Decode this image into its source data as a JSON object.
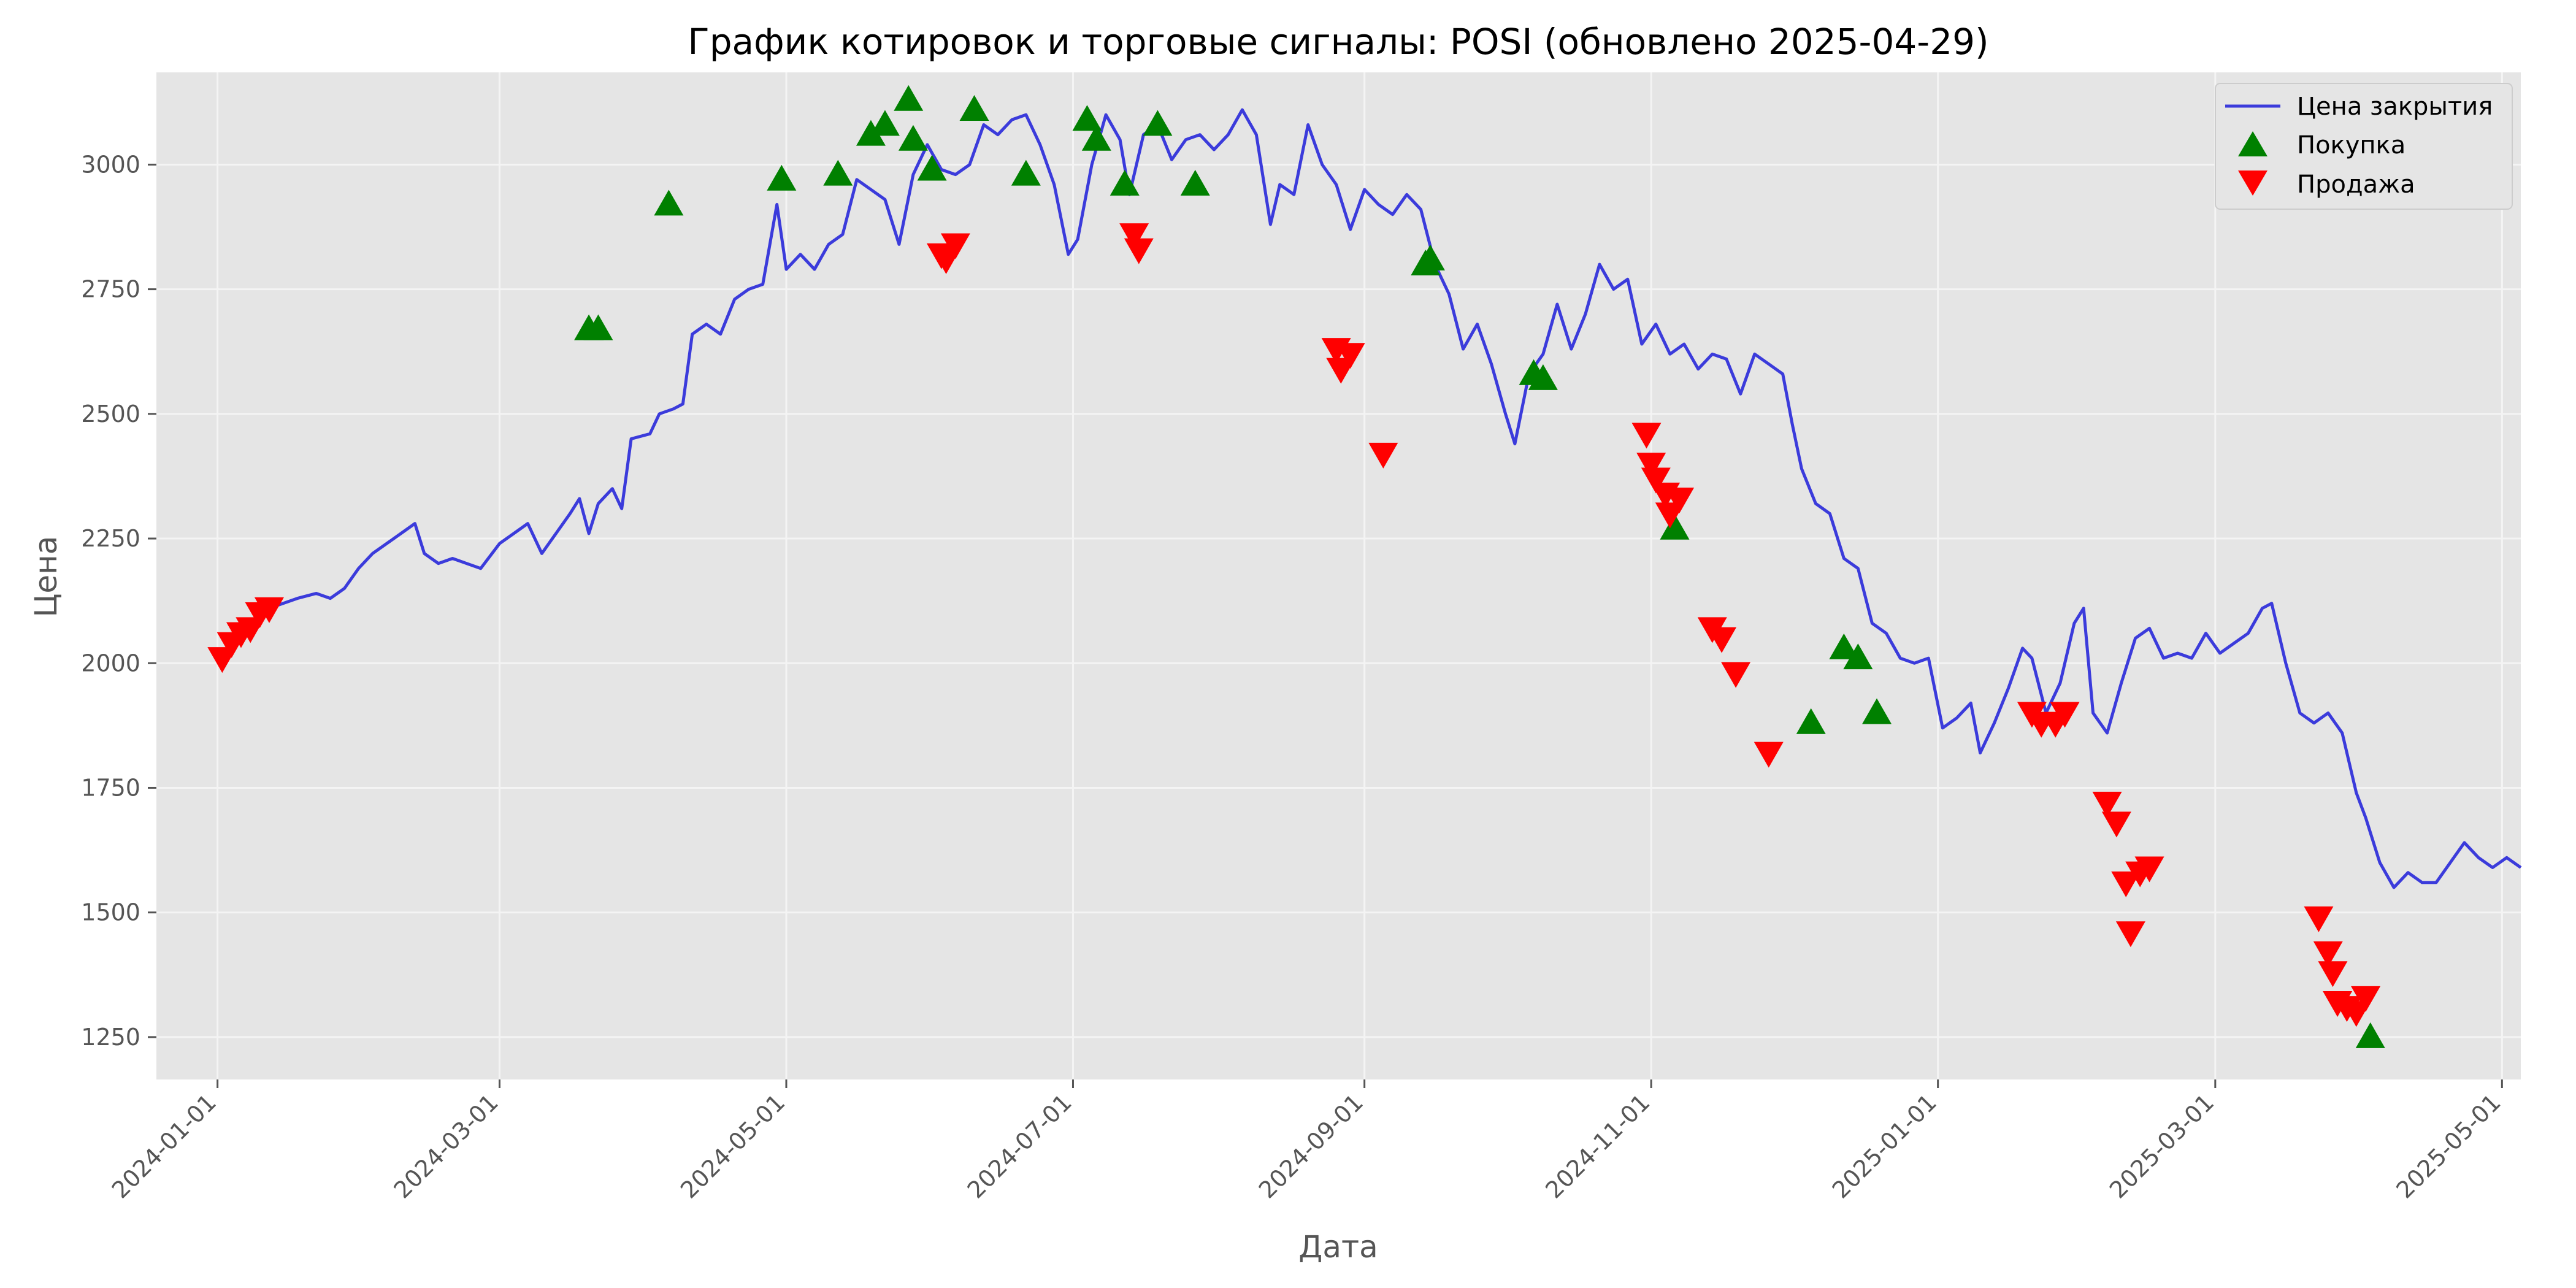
{
  "chart_data": {
    "type": "line",
    "title": "График котировок и торговые сигналы: POSI (обновлено 2025-04-29)",
    "xlabel": "Дата",
    "ylabel": "Цена",
    "x_range": [
      "2023-12-19",
      "2025-05-05"
    ],
    "ylim": [
      1165,
      3185
    ],
    "grid": true,
    "legend_position": "top-right",
    "x_ticks": [
      "2024-01-01",
      "2024-03-01",
      "2024-05-01",
      "2024-07-01",
      "2024-09-01",
      "2024-11-01",
      "2025-01-01",
      "2025-03-01",
      "2025-05-01"
    ],
    "y_ticks": [
      1250,
      1500,
      1750,
      2000,
      2250,
      2500,
      2750,
      3000
    ],
    "colors": {
      "close": "#3b3bdb",
      "buy": "#008000",
      "sell": "#ff0000",
      "plot_bg": "#e5e5e5",
      "grid": "#f4f4f4"
    },
    "series": [
      {
        "name": "Цена закрытия",
        "kind": "line",
        "points": [
          [
            "2024-01-03",
            2020
          ],
          [
            "2024-01-05",
            2050
          ],
          [
            "2024-01-08",
            2070
          ],
          [
            "2024-01-10",
            2090
          ],
          [
            "2024-01-12",
            2110
          ],
          [
            "2024-01-15",
            2120
          ],
          [
            "2024-01-18",
            2130
          ],
          [
            "2024-01-22",
            2140
          ],
          [
            "2024-01-25",
            2130
          ],
          [
            "2024-01-28",
            2150
          ],
          [
            "2024-01-31",
            2190
          ],
          [
            "2024-02-03",
            2220
          ],
          [
            "2024-02-06",
            2240
          ],
          [
            "2024-02-09",
            2260
          ],
          [
            "2024-02-12",
            2280
          ],
          [
            "2024-02-14",
            2220
          ],
          [
            "2024-02-17",
            2200
          ],
          [
            "2024-02-20",
            2210
          ],
          [
            "2024-02-23",
            2200
          ],
          [
            "2024-02-26",
            2190
          ],
          [
            "2024-03-01",
            2240
          ],
          [
            "2024-03-04",
            2260
          ],
          [
            "2024-03-07",
            2280
          ],
          [
            "2024-03-10",
            2220
          ],
          [
            "2024-03-13",
            2260
          ],
          [
            "2024-03-16",
            2300
          ],
          [
            "2024-03-18",
            2330
          ],
          [
            "2024-03-20",
            2260
          ],
          [
            "2024-03-22",
            2320
          ],
          [
            "2024-03-25",
            2350
          ],
          [
            "2024-03-27",
            2310
          ],
          [
            "2024-03-29",
            2450
          ],
          [
            "2024-04-02",
            2460
          ],
          [
            "2024-04-04",
            2500
          ],
          [
            "2024-04-07",
            2510
          ],
          [
            "2024-04-09",
            2520
          ],
          [
            "2024-04-11",
            2660
          ],
          [
            "2024-04-14",
            2680
          ],
          [
            "2024-04-17",
            2660
          ],
          [
            "2024-04-20",
            2730
          ],
          [
            "2024-04-23",
            2750
          ],
          [
            "2024-04-26",
            2760
          ],
          [
            "2024-04-29",
            2920
          ],
          [
            "2024-05-01",
            2790
          ],
          [
            "2024-05-04",
            2820
          ],
          [
            "2024-05-07",
            2790
          ],
          [
            "2024-05-10",
            2840
          ],
          [
            "2024-05-13",
            2860
          ],
          [
            "2024-05-16",
            2970
          ],
          [
            "2024-05-19",
            2950
          ],
          [
            "2024-05-22",
            2930
          ],
          [
            "2024-05-25",
            2840
          ],
          [
            "2024-05-28",
            2980
          ],
          [
            "2024-05-31",
            3040
          ],
          [
            "2024-06-03",
            2990
          ],
          [
            "2024-06-06",
            2980
          ],
          [
            "2024-06-09",
            3000
          ],
          [
            "2024-06-12",
            3080
          ],
          [
            "2024-06-15",
            3060
          ],
          [
            "2024-06-18",
            3090
          ],
          [
            "2024-06-21",
            3100
          ],
          [
            "2024-06-24",
            3040
          ],
          [
            "2024-06-27",
            2960
          ],
          [
            "2024-06-30",
            2820
          ],
          [
            "2024-07-02",
            2850
          ],
          [
            "2024-07-05",
            3000
          ],
          [
            "2024-07-08",
            3100
          ],
          [
            "2024-07-11",
            3050
          ],
          [
            "2024-07-13",
            2940
          ],
          [
            "2024-07-16",
            3060
          ],
          [
            "2024-07-19",
            3080
          ],
          [
            "2024-07-22",
            3010
          ],
          [
            "2024-07-25",
            3050
          ],
          [
            "2024-07-28",
            3060
          ],
          [
            "2024-07-31",
            3030
          ],
          [
            "2024-08-03",
            3060
          ],
          [
            "2024-08-06",
            3110
          ],
          [
            "2024-08-09",
            3060
          ],
          [
            "2024-08-12",
            2880
          ],
          [
            "2024-08-14",
            2960
          ],
          [
            "2024-08-17",
            2940
          ],
          [
            "2024-08-20",
            3080
          ],
          [
            "2024-08-23",
            3000
          ],
          [
            "2024-08-26",
            2960
          ],
          [
            "2024-08-29",
            2870
          ],
          [
            "2024-09-01",
            2950
          ],
          [
            "2024-09-04",
            2920
          ],
          [
            "2024-09-07",
            2900
          ],
          [
            "2024-09-10",
            2940
          ],
          [
            "2024-09-13",
            2910
          ],
          [
            "2024-09-16",
            2800
          ],
          [
            "2024-09-19",
            2740
          ],
          [
            "2024-09-22",
            2630
          ],
          [
            "2024-09-25",
            2680
          ],
          [
            "2024-09-28",
            2600
          ],
          [
            "2024-10-01",
            2500
          ],
          [
            "2024-10-03",
            2440
          ],
          [
            "2024-10-06",
            2580
          ],
          [
            "2024-10-09",
            2620
          ],
          [
            "2024-10-12",
            2720
          ],
          [
            "2024-10-15",
            2630
          ],
          [
            "2024-10-18",
            2700
          ],
          [
            "2024-10-21",
            2800
          ],
          [
            "2024-10-24",
            2750
          ],
          [
            "2024-10-27",
            2770
          ],
          [
            "2024-10-30",
            2640
          ],
          [
            "2024-11-02",
            2680
          ],
          [
            "2024-11-05",
            2620
          ],
          [
            "2024-11-08",
            2640
          ],
          [
            "2024-11-11",
            2590
          ],
          [
            "2024-11-14",
            2620
          ],
          [
            "2024-11-17",
            2610
          ],
          [
            "2024-11-20",
            2540
          ],
          [
            "2024-11-23",
            2620
          ],
          [
            "2024-11-26",
            2600
          ],
          [
            "2024-11-29",
            2580
          ],
          [
            "2024-12-01",
            2480
          ],
          [
            "2024-12-03",
            2390
          ],
          [
            "2024-12-06",
            2320
          ],
          [
            "2024-12-09",
            2300
          ],
          [
            "2024-12-12",
            2210
          ],
          [
            "2024-12-15",
            2190
          ],
          [
            "2024-12-18",
            2080
          ],
          [
            "2024-12-21",
            2060
          ],
          [
            "2024-12-24",
            2010
          ],
          [
            "2024-12-27",
            2000
          ],
          [
            "2024-12-30",
            2010
          ],
          [
            "2025-01-02",
            1870
          ],
          [
            "2025-01-05",
            1890
          ],
          [
            "2025-01-08",
            1920
          ],
          [
            "2025-01-10",
            1820
          ],
          [
            "2025-01-13",
            1880
          ],
          [
            "2025-01-16",
            1950
          ],
          [
            "2025-01-19",
            2030
          ],
          [
            "2025-01-21",
            2010
          ],
          [
            "2025-01-24",
            1900
          ],
          [
            "2025-01-27",
            1960
          ],
          [
            "2025-01-30",
            2080
          ],
          [
            "2025-02-01",
            2110
          ],
          [
            "2025-02-03",
            1900
          ],
          [
            "2025-02-06",
            1860
          ],
          [
            "2025-02-09",
            1960
          ],
          [
            "2025-02-12",
            2050
          ],
          [
            "2025-02-15",
            2070
          ],
          [
            "2025-02-18",
            2010
          ],
          [
            "2025-02-21",
            2020
          ],
          [
            "2025-02-24",
            2010
          ],
          [
            "2025-02-27",
            2060
          ],
          [
            "2025-03-02",
            2020
          ],
          [
            "2025-03-05",
            2040
          ],
          [
            "2025-03-08",
            2060
          ],
          [
            "2025-03-11",
            2110
          ],
          [
            "2025-03-13",
            2120
          ],
          [
            "2025-03-16",
            2000
          ],
          [
            "2025-03-19",
            1900
          ],
          [
            "2025-03-22",
            1880
          ],
          [
            "2025-03-25",
            1900
          ],
          [
            "2025-03-28",
            1860
          ],
          [
            "2025-03-31",
            1740
          ],
          [
            "2025-04-02",
            1690
          ],
          [
            "2025-04-05",
            1600
          ],
          [
            "2025-04-08",
            1550
          ],
          [
            "2025-04-11",
            1580
          ],
          [
            "2025-04-14",
            1560
          ],
          [
            "2025-04-17",
            1560
          ],
          [
            "2025-04-20",
            1600
          ],
          [
            "2025-04-23",
            1640
          ],
          [
            "2025-04-26",
            1610
          ],
          [
            "2025-04-29",
            1590
          ],
          [
            "2025-05-02",
            1610
          ],
          [
            "2025-05-05",
            1590
          ]
        ]
      },
      {
        "name": "Покупка",
        "kind": "marker-up",
        "points": [
          [
            "2024-03-20",
            2670
          ],
          [
            "2024-03-22",
            2670
          ],
          [
            "2024-04-06",
            2920
          ],
          [
            "2024-04-30",
            2970
          ],
          [
            "2024-05-12",
            2980
          ],
          [
            "2024-05-19",
            3060
          ],
          [
            "2024-05-22",
            3080
          ],
          [
            "2024-05-27",
            3130
          ],
          [
            "2024-05-28",
            3050
          ],
          [
            "2024-06-01",
            2990
          ],
          [
            "2024-06-10",
            3110
          ],
          [
            "2024-06-21",
            2980
          ],
          [
            "2024-07-04",
            3090
          ],
          [
            "2024-07-06",
            3050
          ],
          [
            "2024-07-12",
            2960
          ],
          [
            "2024-07-19",
            3080
          ],
          [
            "2024-07-27",
            2960
          ],
          [
            "2024-09-14",
            2800
          ],
          [
            "2024-09-15",
            2810
          ],
          [
            "2024-10-07",
            2580
          ],
          [
            "2024-10-09",
            2570
          ],
          [
            "2024-11-06",
            2270
          ],
          [
            "2024-12-05",
            1880
          ],
          [
            "2024-12-12",
            2030
          ],
          [
            "2024-12-15",
            2010
          ],
          [
            "2024-12-19",
            1900
          ],
          [
            "2025-04-03",
            1250
          ]
        ]
      },
      {
        "name": "Продажа",
        "kind": "marker-down",
        "points": [
          [
            "2024-01-02",
            2010
          ],
          [
            "2024-01-04",
            2040
          ],
          [
            "2024-01-06",
            2060
          ],
          [
            "2024-01-08",
            2070
          ],
          [
            "2024-01-10",
            2100
          ],
          [
            "2024-01-12",
            2110
          ],
          [
            "2024-06-03",
            2820
          ],
          [
            "2024-06-04",
            2810
          ],
          [
            "2024-06-06",
            2840
          ],
          [
            "2024-07-14",
            2860
          ],
          [
            "2024-07-15",
            2830
          ],
          [
            "2024-08-26",
            2630
          ],
          [
            "2024-08-27",
            2590
          ],
          [
            "2024-08-29",
            2620
          ],
          [
            "2024-09-05",
            2420
          ],
          [
            "2024-10-31",
            2460
          ],
          [
            "2024-11-01",
            2400
          ],
          [
            "2024-11-02",
            2370
          ],
          [
            "2024-11-04",
            2340
          ],
          [
            "2024-11-05",
            2300
          ],
          [
            "2024-11-07",
            2330
          ],
          [
            "2024-11-14",
            2070
          ],
          [
            "2024-11-16",
            2050
          ],
          [
            "2024-11-19",
            1980
          ],
          [
            "2024-11-26",
            1820
          ],
          [
            "2025-01-21",
            1900
          ],
          [
            "2025-01-23",
            1880
          ],
          [
            "2025-01-26",
            1880
          ],
          [
            "2025-01-28",
            1900
          ],
          [
            "2025-02-06",
            1720
          ],
          [
            "2025-02-08",
            1680
          ],
          [
            "2025-02-10",
            1560
          ],
          [
            "2025-02-11",
            1460
          ],
          [
            "2025-02-13",
            1580
          ],
          [
            "2025-02-15",
            1590
          ],
          [
            "2025-03-23",
            1490
          ],
          [
            "2025-03-25",
            1420
          ],
          [
            "2025-03-26",
            1380
          ],
          [
            "2025-03-27",
            1320
          ],
          [
            "2025-03-29",
            1310
          ],
          [
            "2025-03-31",
            1300
          ],
          [
            "2025-04-02",
            1330
          ]
        ]
      }
    ]
  }
}
